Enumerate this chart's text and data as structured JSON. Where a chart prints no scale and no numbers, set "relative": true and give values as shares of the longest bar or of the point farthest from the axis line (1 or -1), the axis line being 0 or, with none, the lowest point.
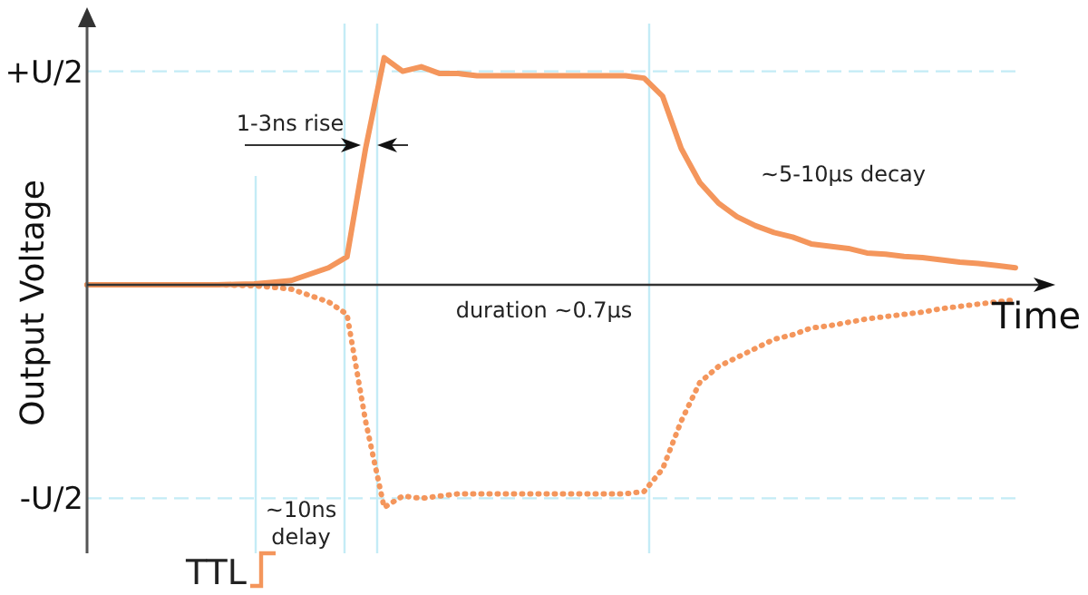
{
  "chart_data": {
    "type": "line",
    "xlabel": "Time",
    "ylabel": "Output Voltage",
    "relative": true,
    "categories": [
      null,
      null,
      null,
      null,
      null,
      null,
      null,
      null,
      null,
      null,
      null,
      null,
      null,
      null,
      null,
      null,
      null,
      null,
      null,
      null,
      null,
      null,
      null,
      null,
      null,
      null,
      null,
      null,
      null,
      null,
      null,
      null,
      null,
      null,
      null,
      null,
      null,
      null,
      null,
      null,
      null,
      null,
      null,
      null,
      null,
      null,
      null,
      null,
      null,
      null,
      null
    ],
    "series": [
      {
        "color": "#f4965c",
        "line_style": "solid",
        "values": [
          0,
          0,
          0,
          0,
          0,
          0,
          0,
          0,
          0.002,
          0.004,
          0.011,
          0.019,
          0.047,
          0.075,
          0.123,
          0.6,
          1,
          0.94,
          0.96,
          0.93,
          0.93,
          0.92,
          0.92,
          0.92,
          0.92,
          0.92,
          0.92,
          0.92,
          0.92,
          0.92,
          0.91,
          0.83,
          0.6,
          0.45,
          0.36,
          0.3,
          0.26,
          0.23,
          0.21,
          0.18,
          0.17,
          0.16,
          0.14,
          0.135,
          0.125,
          0.12,
          0.11,
          0.1,
          0.094,
          0.085,
          0.075
        ]
      },
      {
        "color": "#f4965c",
        "line_style": "dotted",
        "values": [
          0,
          0,
          0,
          0,
          0,
          0,
          0,
          0,
          -0.002,
          -0.004,
          -0.011,
          -0.019,
          -0.047,
          -0.075,
          -0.13,
          -0.6,
          -0.98,
          -0.93,
          -0.94,
          -0.93,
          -0.92,
          -0.92,
          -0.92,
          -0.92,
          -0.92,
          -0.92,
          -0.92,
          -0.92,
          -0.92,
          -0.92,
          -0.91,
          -0.81,
          -0.6,
          -0.43,
          -0.36,
          -0.32,
          -0.28,
          -0.24,
          -0.22,
          -0.19,
          -0.18,
          -0.165,
          -0.15,
          -0.14,
          -0.13,
          -0.12,
          -0.105,
          -0.095,
          -0.085,
          -0.075,
          -0.066
        ]
      }
    ],
    "tick_labels": false,
    "marker": "none",
    "ref_lines": [
      {
        "axis": "y",
        "value": 0.94,
        "label": "+U/2",
        "color": "#c4ecf6",
        "line_style": "dashed"
      },
      {
        "axis": "y",
        "value": -0.94,
        "label": "-U/2",
        "color": "#c4ecf6",
        "line_style": "dashed"
      }
    ],
    "annotations": [
      "1-3ns rise",
      "~5-10μs decay",
      "duration ~0.7μs",
      "~10ns delay",
      "TTL"
    ]
  }
}
